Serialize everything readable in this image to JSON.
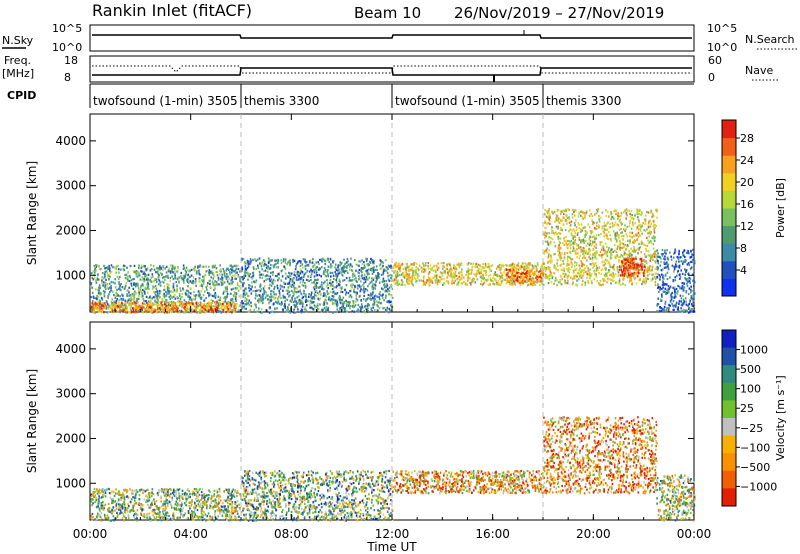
{
  "header": {
    "station": "Rankin Inlet (fitACF)",
    "beam": "Beam 10",
    "date_range": "26/Nov/2019 – 27/Nov/2019"
  },
  "top_panels": {
    "nsky_label": "N.Sky",
    "nsky_ticks": [
      "10^5",
      "10^0"
    ],
    "nsearch_label": "N.Search",
    "nsearch_ticks": [
      "10^5",
      "10^0"
    ],
    "freq_label": "Freq.",
    "freq_unit": "[MHz]",
    "freq_ticks": [
      "18",
      "8"
    ],
    "nave_label": "Nave",
    "nave_ticks": [
      "60",
      "0"
    ],
    "cpid_label": "CPID",
    "cpid_segments": [
      {
        "label": "twofsound (1-min) 3505",
        "start_h": 0,
        "end_h": 6
      },
      {
        "label": "themis 3300",
        "start_h": 6,
        "end_h": 12
      },
      {
        "label": "twofsound (1-min) 3505",
        "start_h": 12,
        "end_h": 18
      },
      {
        "label": "themis 3300",
        "start_h": 18,
        "end_h": 24
      }
    ]
  },
  "chart_data": [
    {
      "type": "heatmap",
      "title": "",
      "xlabel": "Time UT",
      "ylabel": "Slant Range [km]",
      "x_ticks": [
        "00:00",
        "04:00",
        "08:00",
        "12:00",
        "16:00",
        "20:00",
        "00:00"
      ],
      "x_range_hours": [
        0,
        24
      ],
      "y_ticks": [
        1000,
        2000,
        3000,
        4000
      ],
      "ylim": [
        180,
        4600
      ],
      "colorbar": {
        "label": "Power [dB]",
        "ticks": [
          "4",
          "8",
          "12",
          "16",
          "20",
          "24",
          "28"
        ],
        "colors": [
          "#1030f0",
          "#2050c0",
          "#3c8aa6",
          "#509a70",
          "#7ac060",
          "#b8d83a",
          "#f0d020",
          "#f8a020",
          "#f06018",
          "#e02010"
        ]
      },
      "echo_regions": [
        {
          "t0": 0.0,
          "t1": 6.0,
          "r0": 190,
          "r1": 1250,
          "level": 0.35
        },
        {
          "t0": 0.0,
          "t1": 5.8,
          "r0": 190,
          "r1": 420,
          "level": 0.75
        },
        {
          "t0": 6.0,
          "t1": 12.0,
          "r0": 190,
          "r1": 1400,
          "level": 0.3
        },
        {
          "t0": 12.0,
          "t1": 18.0,
          "r0": 800,
          "r1": 1300,
          "level": 0.62
        },
        {
          "t0": 16.5,
          "t1": 18.0,
          "r0": 850,
          "r1": 1150,
          "level": 0.82
        },
        {
          "t0": 18.0,
          "t1": 22.5,
          "r0": 800,
          "r1": 2500,
          "level": 0.6
        },
        {
          "t0": 21.0,
          "t1": 22.0,
          "r0": 1000,
          "r1": 1400,
          "level": 0.95
        },
        {
          "t0": 22.5,
          "t1": 24.0,
          "r0": 190,
          "r1": 1600,
          "level": 0.2
        }
      ]
    },
    {
      "type": "heatmap",
      "title": "",
      "xlabel": "Time UT",
      "ylabel": "Slant Range [km]",
      "x_ticks": [
        "00:00",
        "04:00",
        "08:00",
        "12:00",
        "16:00",
        "20:00",
        "00:00"
      ],
      "x_range_hours": [
        0,
        24
      ],
      "y_ticks": [
        1000,
        2000,
        3000,
        4000
      ],
      "ylim": [
        180,
        4600
      ],
      "colorbar": {
        "label": "Velocity [m s⁻¹]",
        "ticks": [
          "1000",
          "500",
          "100",
          "25",
          "−25",
          "−100",
          "−500",
          "−1000"
        ],
        "colors": [
          "#1020c0",
          "#2050a8",
          "#308a80",
          "#40a040",
          "#70c030",
          "#c0c0c0",
          "#f8b000",
          "#f89000",
          "#f06000",
          "#e02000"
        ]
      },
      "echo_regions": [
        {
          "t0": 0.0,
          "t1": 6.0,
          "r0": 190,
          "r1": 900,
          "level": 0.45
        },
        {
          "t0": 6.0,
          "t1": 12.0,
          "r0": 190,
          "r1": 1300,
          "level": 0.4
        },
        {
          "t0": 12.0,
          "t1": 18.0,
          "r0": 800,
          "r1": 1300,
          "level": 0.7
        },
        {
          "t0": 18.0,
          "t1": 22.5,
          "r0": 800,
          "r1": 2500,
          "level": 0.75
        },
        {
          "t0": 22.5,
          "t1": 24.0,
          "r0": 190,
          "r1": 1200,
          "level": 0.5
        }
      ]
    }
  ]
}
